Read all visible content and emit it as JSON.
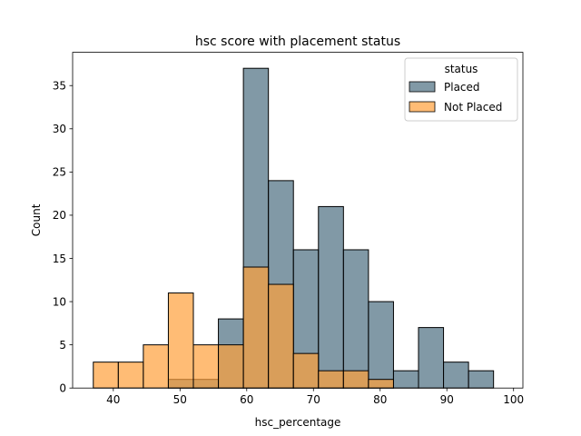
{
  "chart_data": {
    "type": "bar",
    "title": "hsc score with placement status",
    "xlabel": "hsc_percentage",
    "ylabel": "Count",
    "xlim": [
      33.9,
      101.4
    ],
    "ylim": [
      0,
      38.85
    ],
    "xticks": [
      40,
      50,
      60,
      70,
      80,
      90,
      100
    ],
    "yticks": [
      0,
      5,
      10,
      15,
      20,
      25,
      30,
      35
    ],
    "bin_edges": [
      37.0,
      40.75,
      44.5,
      48.25,
      52.0,
      55.75,
      59.5,
      63.25,
      67.0,
      70.75,
      74.5,
      78.25,
      82.0,
      85.75,
      89.5,
      93.25,
      97.0
    ],
    "legend": {
      "title": "status",
      "position": "upper right"
    },
    "series": [
      {
        "name": "Placed",
        "color": "#4c6e80",
        "values": [
          0,
          0,
          0,
          1,
          1,
          8,
          37,
          24,
          16,
          21,
          16,
          10,
          2,
          7,
          3,
          2
        ]
      },
      {
        "name": "Not Placed",
        "color": "#ff9f3a",
        "values": [
          3,
          3,
          5,
          11,
          5,
          5,
          14,
          12,
          4,
          2,
          2,
          1,
          0,
          0,
          0,
          0
        ]
      }
    ]
  }
}
